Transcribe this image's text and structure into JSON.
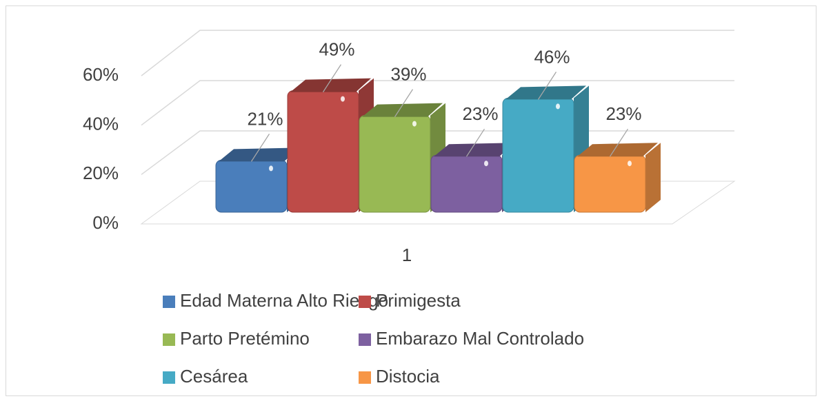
{
  "chart_data": {
    "type": "bar",
    "categories": [
      "1"
    ],
    "series": [
      {
        "name": "Edad Materna Alto Riesgo",
        "color": "#4a7ebb",
        "values": [
          21
        ],
        "value_labels": [
          "21%"
        ]
      },
      {
        "name": "Primigesta",
        "color": "#be4b48",
        "values": [
          49
        ],
        "value_labels": [
          "49%"
        ]
      },
      {
        "name": "Parto Pretémino",
        "color": "#98b954",
        "values": [
          39
        ],
        "value_labels": [
          "39%"
        ]
      },
      {
        "name": "Embarazo Mal Controlado",
        "color": "#7d60a0",
        "values": [
          23
        ],
        "value_labels": [
          "23%"
        ]
      },
      {
        "name": "Cesárea",
        "color": "#46aac5",
        "values": [
          46
        ],
        "value_labels": [
          "46%"
        ]
      },
      {
        "name": "Distocia",
        "color": "#f79646",
        "values": [
          23
        ],
        "value_labels": [
          "23%"
        ]
      }
    ],
    "ylim": [
      0,
      60
    ],
    "yticks": [
      {
        "value": 0,
        "label": "0%"
      },
      {
        "value": 20,
        "label": "20%"
      },
      {
        "value": 40,
        "label": "40%"
      },
      {
        "value": 60,
        "label": "60%"
      }
    ],
    "grid": true,
    "legend": "bottom"
  }
}
